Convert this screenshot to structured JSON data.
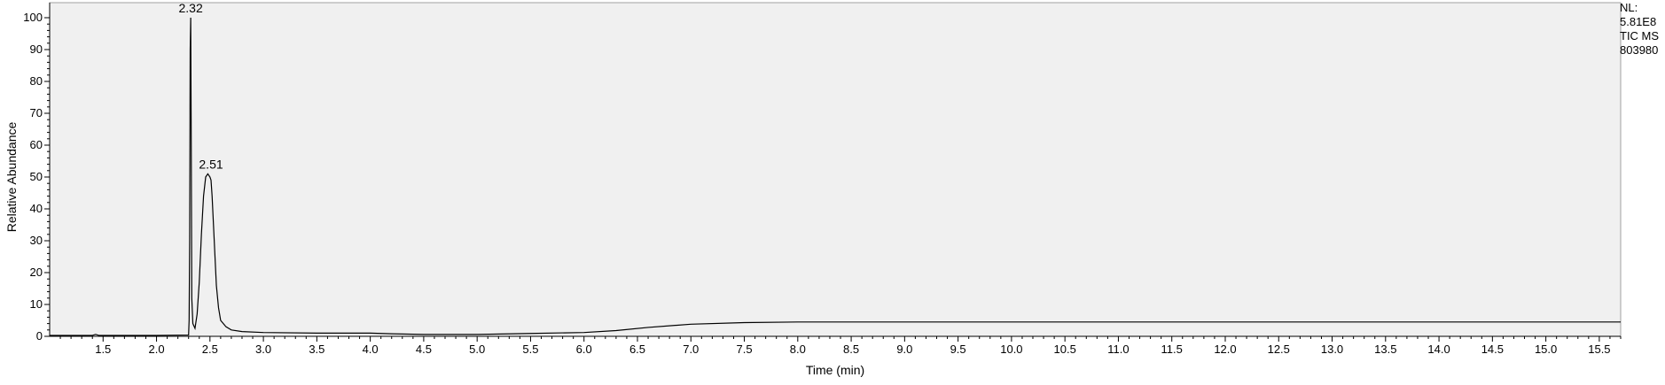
{
  "chart_data": {
    "type": "line",
    "xlabel": "Time (min)",
    "ylabel": "Relative Abundance",
    "xlim": [
      1.0,
      15.7
    ],
    "ylim": [
      0,
      100
    ],
    "grid": false,
    "x_ticks": [
      1.5,
      2.0,
      2.5,
      3.0,
      3.5,
      4.0,
      4.5,
      5.0,
      5.5,
      6.0,
      6.5,
      7.0,
      7.5,
      8.0,
      8.5,
      9.0,
      9.5,
      10.0,
      10.5,
      11.0,
      11.5,
      12.0,
      12.5,
      13.0,
      13.5,
      14.0,
      14.5,
      15.0,
      15.5
    ],
    "x_tick_labels": [
      "1.5",
      "2.0",
      "2.5",
      "3.0",
      "3.5",
      "4.0",
      "4.5",
      "5.0",
      "5.5",
      "6.0",
      "6.5",
      "7.0",
      "7.5",
      "8.0",
      "8.5",
      "9.0",
      "9.5",
      "10.0",
      "10.5",
      "11.0",
      "11.5",
      "12.0",
      "12.5",
      "13.0",
      "13.5",
      "14.0",
      "14.5",
      "15.0",
      "15.5"
    ],
    "y_ticks": [
      0,
      10,
      20,
      30,
      40,
      50,
      60,
      70,
      80,
      90,
      100
    ],
    "y_tick_labels": [
      "0",
      "10",
      "20",
      "30",
      "40",
      "50",
      "60",
      "70",
      "80",
      "90",
      "100"
    ],
    "peaks": [
      {
        "x": 2.32,
        "y": 100,
        "label": "2.32"
      },
      {
        "x": 2.51,
        "y": 51,
        "label": "2.51"
      }
    ],
    "series": [
      {
        "x": [
          1.0,
          1.4,
          1.43,
          1.46,
          1.5,
          2.0,
          2.3,
          2.305,
          2.31,
          2.315,
          2.32,
          2.325,
          2.33,
          2.34,
          2.36,
          2.38,
          2.4,
          2.42,
          2.44,
          2.46,
          2.48,
          2.5,
          2.51,
          2.52,
          2.54,
          2.56,
          2.58,
          2.6,
          2.65,
          2.7,
          2.8,
          3.0,
          3.5,
          4.0,
          4.2,
          4.5,
          5.0,
          5.5,
          6.0,
          6.3,
          6.6,
          7.0,
          7.5,
          8.0,
          9.0,
          10.0,
          11.0,
          12.0,
          13.0,
          14.0,
          15.0,
          15.7
        ],
        "y": [
          0.3,
          0.3,
          0.6,
          0.3,
          0.3,
          0.3,
          0.4,
          5,
          30,
          90,
          100,
          60,
          12,
          4,
          2.5,
          7,
          17,
          32,
          44,
          50,
          51,
          50,
          49,
          44,
          30,
          16,
          9,
          5,
          3,
          2,
          1.5,
          1.2,
          1.0,
          1.0,
          0.8,
          0.6,
          0.6,
          0.9,
          1.2,
          1.8,
          2.8,
          3.8,
          4.3,
          4.5,
          4.5,
          4.5,
          4.5,
          4.5,
          4.5,
          4.5,
          4.5,
          4.5
        ]
      }
    ]
  },
  "info": {
    "line1": "NL:",
    "line2": "5.81E8",
    "line3": "TIC  MS",
    "line4": "803980"
  },
  "colors": {
    "plot_bg": "#f0f0f0",
    "trace": "#000000"
  }
}
